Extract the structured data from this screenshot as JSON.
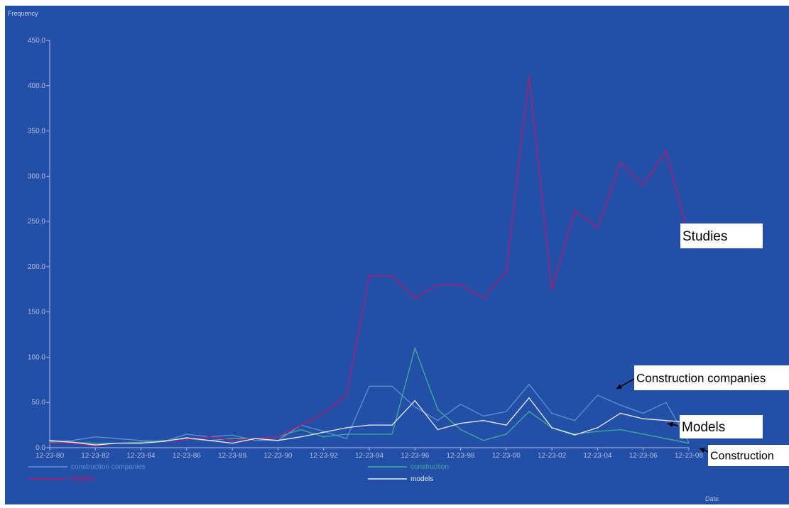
{
  "chart_data": {
    "type": "line",
    "ylabel": "Frequency",
    "xlabel": "Date",
    "ylim": [
      0,
      450
    ],
    "y_ticks": [
      "0.0",
      "50.0",
      "100.0",
      "150.0",
      "200.0",
      "250.0",
      "300.0",
      "350.0",
      "400.0",
      "450.0"
    ],
    "x_ticks": [
      "12-23-80",
      "12-23-82",
      "12-23-84",
      "12-23-86",
      "12-23-88",
      "12-23-90",
      "12-23-92",
      "12-23-94",
      "12-23-96",
      "12-23-98",
      "12-23-00",
      "12-23-02",
      "12-23-04",
      "12-23-06",
      "12-23-08"
    ],
    "x_years": [
      1980,
      1981,
      1982,
      1983,
      1984,
      1985,
      1986,
      1987,
      1988,
      1989,
      1990,
      1991,
      1992,
      1993,
      1994,
      1995,
      1996,
      1997,
      1998,
      1999,
      2000,
      2001,
      2002,
      2003,
      2004,
      2005,
      2006,
      2007,
      2008
    ],
    "series": [
      {
        "name": "construction companies",
        "color": "#5b8fd6",
        "values": [
          6,
          8,
          12,
          10,
          8,
          7,
          15,
          12,
          14,
          8,
          8,
          25,
          18,
          10,
          68,
          68,
          45,
          30,
          48,
          35,
          40,
          70,
          38,
          30,
          58,
          47,
          38,
          50,
          6
        ]
      },
      {
        "name": "construction",
        "color": "#3fae9a",
        "values": [
          7,
          6,
          5,
          5,
          6,
          8,
          10,
          8,
          10,
          10,
          12,
          20,
          12,
          15,
          15,
          15,
          110,
          42,
          20,
          8,
          15,
          40,
          22,
          15,
          18,
          20,
          15,
          10,
          5
        ]
      },
      {
        "name": "Studies",
        "color": "#c0146e",
        "values": [
          5,
          5,
          2,
          5,
          5,
          7,
          9,
          12,
          8,
          10,
          12,
          25,
          38,
          58,
          190,
          190,
          165,
          180,
          180,
          165,
          195,
          410,
          175,
          262,
          243,
          315,
          290,
          328,
          232
        ]
      },
      {
        "name": "models",
        "color": "#e8ecf4",
        "values": [
          8,
          6,
          3,
          5,
          5,
          7,
          11,
          8,
          5,
          10,
          8,
          12,
          17,
          22,
          25,
          25,
          52,
          20,
          27,
          30,
          25,
          55,
          22,
          14,
          22,
          38,
          32,
          30,
          28
        ]
      }
    ],
    "annotations": [
      {
        "text": "Studies"
      },
      {
        "text": "Construction companies"
      },
      {
        "text": "Models"
      },
      {
        "text": "Construction"
      }
    ],
    "legend": [
      {
        "label": "construction companies"
      },
      {
        "label": "construction"
      },
      {
        "label": "Studies"
      },
      {
        "label": "models"
      }
    ],
    "grid": false,
    "legend_position": "bottom",
    "background": "#2350a6",
    "axis_color": "#aebde0"
  }
}
